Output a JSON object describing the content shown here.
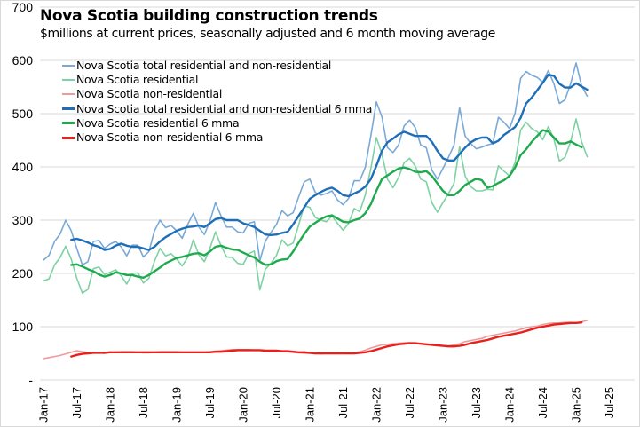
{
  "chart_data": {
    "type": "line",
    "title": "Nova Scotia building construction trends",
    "subtitle": "$millions at current prices, seasonally adjusted and 6 month moving average",
    "xlabel": "",
    "ylabel": "",
    "ylim": [
      0,
      700
    ],
    "y_ticks": [
      0,
      100,
      200,
      300,
      400,
      500,
      600,
      700
    ],
    "y_tick_labels": [
      "-",
      "100",
      "200",
      "300",
      "400",
      "500",
      "600",
      "700"
    ],
    "x_tick_labels": [
      "Jan-17",
      "Jul-17",
      "Jan-18",
      "Jul-18",
      "Jan-19",
      "Jul-19",
      "Jan-20",
      "Jul-20",
      "Jan-21",
      "Jul-21",
      "Jan-22",
      "Jul-22",
      "Jan-23",
      "Jul-23",
      "Jan-24",
      "Jul-24",
      "Jan-25",
      "Jul-25"
    ],
    "x_start": "Jan-17",
    "x_end": "Jul-25",
    "x_unit": "month",
    "grid": true,
    "legend_position": "top-left",
    "series": [
      {
        "name": "Nova Scotia total residential and non-residential",
        "color": "#7aa9d6",
        "width": "thin",
        "start_month_index": 0,
        "values": [
          225,
          234,
          260,
          274,
          300,
          280,
          247,
          216,
          222,
          260,
          262,
          247,
          255,
          260,
          250,
          233,
          253,
          253,
          231,
          241,
          280,
          300,
          286,
          290,
          280,
          266,
          292,
          313,
          287,
          273,
          298,
          333,
          308,
          287,
          287,
          278,
          276,
          294,
          297,
          224,
          261,
          277,
          292,
          318,
          308,
          314,
          344,
          372,
          377,
          352,
          347,
          350,
          355,
          338,
          329,
          341,
          374,
          374,
          399,
          458,
          522,
          494,
          436,
          427,
          441,
          477,
          488,
          474,
          441,
          436,
          394,
          377,
          397,
          418,
          441,
          511,
          458,
          444,
          434,
          437,
          441,
          444,
          493,
          484,
          472,
          501,
          566,
          579,
          572,
          568,
          559,
          581,
          556,
          519,
          526,
          556,
          595,
          552,
          533
        ]
      },
      {
        "name": "Nova Scotia residential",
        "color": "#7fd1a4",
        "width": "thin",
        "start_month_index": 0,
        "values": [
          186,
          190,
          216,
          230,
          251,
          227,
          191,
          163,
          170,
          209,
          212,
          198,
          202,
          207,
          196,
          180,
          200,
          201,
          182,
          191,
          223,
          247,
          233,
          237,
          227,
          214,
          230,
          263,
          235,
          222,
          247,
          278,
          252,
          231,
          230,
          219,
          217,
          237,
          242,
          169,
          208,
          219,
          234,
          263,
          252,
          257,
          291,
          327,
          324,
          305,
          300,
          297,
          308,
          294,
          281,
          294,
          322,
          316,
          347,
          397,
          455,
          424,
          377,
          361,
          380,
          408,
          416,
          402,
          377,
          372,
          333,
          315,
          333,
          350,
          369,
          438,
          383,
          363,
          355,
          355,
          358,
          357,
          402,
          392,
          383,
          408,
          469,
          484,
          472,
          466,
          451,
          476,
          452,
          411,
          418,
          447,
          490,
          447,
          419
        ]
      },
      {
        "name": "Nova Scotia non-residential",
        "color": "#ee9a9a",
        "width": "thin",
        "start_month_index": 0,
        "values": [
          40,
          42,
          44,
          46,
          49,
          52,
          55,
          53,
          52,
          52,
          51,
          50,
          52,
          52,
          53,
          53,
          53,
          52,
          51,
          51,
          52,
          53,
          53,
          53,
          53,
          52,
          52,
          52,
          52,
          52,
          53,
          54,
          55,
          56,
          57,
          57,
          57,
          57,
          56,
          56,
          54,
          54,
          54,
          54,
          53,
          52,
          51,
          50,
          50,
          50,
          49,
          50,
          50,
          51,
          51,
          50,
          51,
          53,
          56,
          60,
          63,
          66,
          67,
          68,
          69,
          70,
          70,
          69,
          68,
          67,
          66,
          65,
          64,
          64,
          66,
          68,
          72,
          74,
          76,
          78,
          82,
          84,
          86,
          88,
          90,
          92,
          95,
          98,
          100,
          101,
          104,
          106,
          107,
          107,
          108,
          108,
          107,
          109,
          112
        ]
      },
      {
        "name": "Nova Scotia total residential and non-residential 6 mma",
        "color": "#1f6fb8",
        "width": "thick",
        "start_month_index": 5,
        "values": [
          263,
          265,
          262,
          258,
          253,
          250,
          244,
          246,
          252,
          256,
          252,
          250,
          250,
          247,
          244,
          250,
          260,
          268,
          274,
          280,
          284,
          287,
          288,
          290,
          287,
          294,
          302,
          304,
          300,
          300,
          300,
          294,
          291,
          287,
          280,
          273,
          272,
          273,
          276,
          278,
          292,
          308,
          324,
          340,
          347,
          353,
          358,
          361,
          355,
          347,
          345,
          350,
          355,
          363,
          377,
          402,
          430,
          446,
          453,
          461,
          466,
          462,
          458,
          458,
          458,
          447,
          430,
          416,
          412,
          412,
          424,
          436,
          446,
          452,
          455,
          455,
          444,
          449,
          460,
          467,
          475,
          492,
          519,
          530,
          544,
          558,
          573,
          571,
          556,
          549,
          549,
          557,
          551,
          545
        ]
      },
      {
        "name": "Nova Scotia residential 6 mma",
        "color": "#1faa4e",
        "width": "thick",
        "start_month_index": 5,
        "values": [
          216,
          217,
          213,
          208,
          204,
          198,
          194,
          197,
          202,
          200,
          197,
          197,
          194,
          192,
          197,
          204,
          211,
          219,
          224,
          229,
          231,
          234,
          237,
          238,
          234,
          241,
          250,
          252,
          248,
          245,
          244,
          239,
          234,
          230,
          222,
          216,
          217,
          223,
          226,
          227,
          241,
          258,
          274,
          288,
          295,
          302,
          307,
          309,
          303,
          297,
          296,
          300,
          303,
          313,
          330,
          355,
          377,
          384,
          391,
          397,
          399,
          396,
          391,
          390,
          392,
          383,
          369,
          355,
          347,
          347,
          355,
          366,
          372,
          378,
          375,
          361,
          364,
          370,
          375,
          383,
          399,
          422,
          433,
          447,
          458,
          469,
          466,
          455,
          444,
          444,
          448,
          442,
          437
        ]
      },
      {
        "name": "Nova Scotia non-residential 6 mma",
        "color": "#e8201c",
        "width": "thick",
        "start_month_index": 5,
        "values": [
          44,
          47,
          49,
          50,
          51,
          51,
          51,
          52,
          52,
          52,
          52,
          52,
          52,
          52,
          52,
          52,
          52,
          52,
          52,
          52,
          52,
          52,
          52,
          52,
          52,
          52,
          53,
          53,
          54,
          55,
          56,
          56,
          56,
          56,
          56,
          55,
          55,
          55,
          54,
          54,
          53,
          52,
          52,
          51,
          50,
          50,
          50,
          50,
          50,
          50,
          50,
          50,
          51,
          52,
          54,
          57,
          60,
          63,
          65,
          67,
          68,
          69,
          69,
          68,
          67,
          66,
          65,
          64,
          63,
          63,
          64,
          66,
          69,
          71,
          73,
          75,
          78,
          81,
          83,
          85,
          87,
          89,
          92,
          95,
          98,
          100,
          102,
          104,
          105,
          106,
          107,
          107,
          108
        ]
      }
    ]
  }
}
